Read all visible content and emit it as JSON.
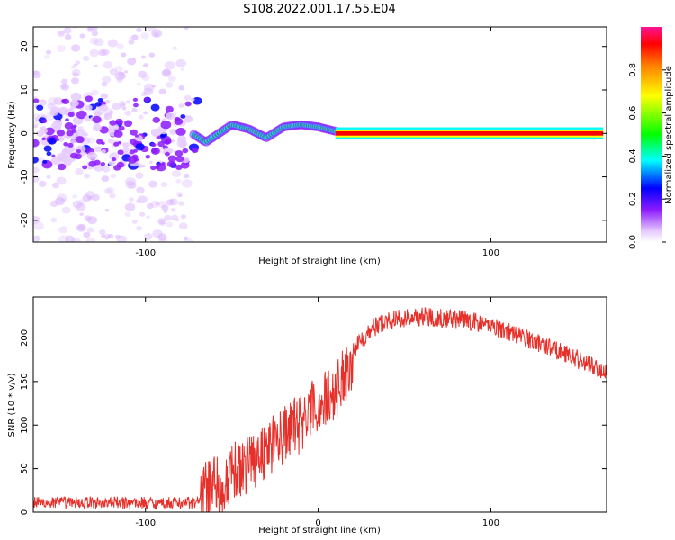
{
  "figure_title": "S108.2022.001.17.55.E04",
  "chart_data": [
    {
      "type": "heatmap",
      "xlabel": "Height of straight line (km)",
      "ylabel": "Frequency (Hz)",
      "xlim": [
        -165,
        167
      ],
      "ylim": [
        -25,
        24.5
      ],
      "xticks": [
        -100,
        100
      ],
      "yticks": [
        -20,
        -10,
        0,
        10,
        20
      ],
      "colorbar": {
        "label": "Normalized spectral amplitude",
        "range": [
          0,
          1
        ],
        "ticks": [
          "0.0",
          "0.2",
          "0.4",
          "0.6",
          "0.8"
        ],
        "colormap": [
          "#ffffff",
          "#d9b3ff",
          "#8000ff",
          "#0000ff",
          "#00ffff",
          "#00ff00",
          "#ffff00",
          "#ff8000",
          "#ff0000",
          "#ff0080"
        ]
      },
      "ridge": {
        "description_points_x": [
          -165,
          -130,
          -100,
          -75,
          -65,
          -50,
          -40,
          -30,
          -20,
          -10,
          0,
          10,
          20,
          40,
          100,
          167
        ],
        "description_points_freq": [
          0,
          0.5,
          0,
          0.5,
          -2,
          2,
          1,
          -1,
          1.5,
          2,
          1.5,
          0.5,
          0,
          0,
          0,
          0
        ]
      }
    },
    {
      "type": "line",
      "xlabel": "Height of straight line (km)",
      "ylabel": "SNR (10 * v/v)",
      "xlim": [
        -165,
        167
      ],
      "ylim": [
        0,
        247
      ],
      "xticks": [
        -100,
        0,
        100
      ],
      "yticks": [
        0,
        50,
        100,
        150,
        200
      ],
      "color": "#e8302a",
      "envelope": {
        "x": [
          -165,
          -70,
          -66,
          -60,
          -55,
          -50,
          -40,
          -20,
          -10,
          0,
          10,
          20,
          30,
          40,
          60,
          80,
          100,
          120,
          140,
          167
        ],
        "y": [
          8,
          8,
          30,
          42,
          25,
          50,
          65,
          95,
          110,
          130,
          145,
          185,
          210,
          220,
          225,
          222,
          215,
          200,
          185,
          160
        ]
      }
    }
  ]
}
